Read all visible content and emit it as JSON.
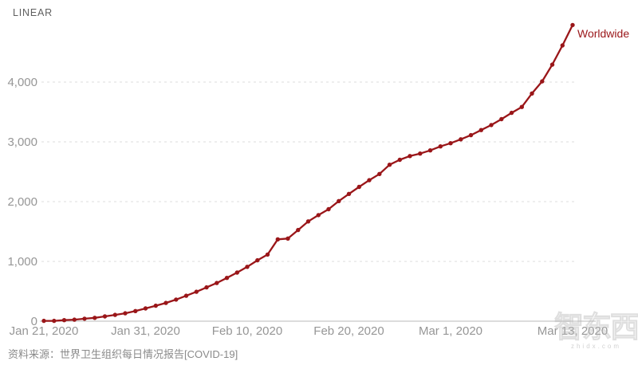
{
  "header": {
    "scale_label": "LINEAR"
  },
  "footer": {
    "source": "资料来源：世界卫生组织每日情况报告[COVID-19]"
  },
  "watermark": {
    "logo_text": "智东西",
    "url": "zhidx.com"
  },
  "chart_data": {
    "type": "line",
    "title": "",
    "series_label": "Worldwide",
    "xlabel": "",
    "ylabel": "",
    "grid": "dashed-horizontal",
    "legend_position": "end-of-line",
    "line_color": "#9a1619",
    "grid_color": "#dcdcdc",
    "axis_color": "#c6c6c6",
    "tick_color": "#969696",
    "ylim": [
      0,
      5000
    ],
    "y_ticks": [
      0,
      1000,
      2000,
      3000,
      4000
    ],
    "y_tick_labels": [
      "0",
      "1,000",
      "2,000",
      "3,000",
      "4,000"
    ],
    "x_tick_labels": [
      "Jan 21, 2020",
      "Jan 31, 2020",
      "Feb 10, 2020",
      "Feb 20, 2020",
      "Mar 1, 2020",
      "Mar 13, 2020"
    ],
    "x_tick_indices": [
      0,
      10,
      20,
      30,
      40,
      52
    ],
    "x": [
      "Jan 21",
      "Jan 22",
      "Jan 23",
      "Jan 24",
      "Jan 25",
      "Jan 26",
      "Jan 27",
      "Jan 28",
      "Jan 29",
      "Jan 30",
      "Jan 31",
      "Feb 1",
      "Feb 2",
      "Feb 3",
      "Feb 4",
      "Feb 5",
      "Feb 6",
      "Feb 7",
      "Feb 8",
      "Feb 9",
      "Feb 10",
      "Feb 11",
      "Feb 12",
      "Feb 13",
      "Feb 14",
      "Feb 15",
      "Feb 16",
      "Feb 17",
      "Feb 18",
      "Feb 19",
      "Feb 20",
      "Feb 21",
      "Feb 22",
      "Feb 23",
      "Feb 24",
      "Feb 25",
      "Feb 26",
      "Feb 27",
      "Feb 28",
      "Feb 29",
      "Mar 1",
      "Mar 2",
      "Mar 3",
      "Mar 4",
      "Mar 5",
      "Mar 6",
      "Mar 7",
      "Mar 8",
      "Mar 9",
      "Mar 10",
      "Mar 11",
      "Mar 12",
      "Mar 13"
    ],
    "values": [
      6,
      6,
      17,
      25,
      41,
      56,
      80,
      106,
      132,
      170,
      213,
      259,
      305,
      362,
      426,
      492,
      565,
      638,
      724,
      813,
      910,
      1018,
      1115,
      1369,
      1383,
      1526,
      1669,
      1775,
      1873,
      2009,
      2129,
      2247,
      2359,
      2462,
      2618,
      2700,
      2762,
      2804,
      2858,
      2924,
      2977,
      3043,
      3112,
      3198,
      3281,
      3380,
      3486,
      3584,
      3809,
      4012,
      4292,
      4613,
      4955
    ]
  }
}
